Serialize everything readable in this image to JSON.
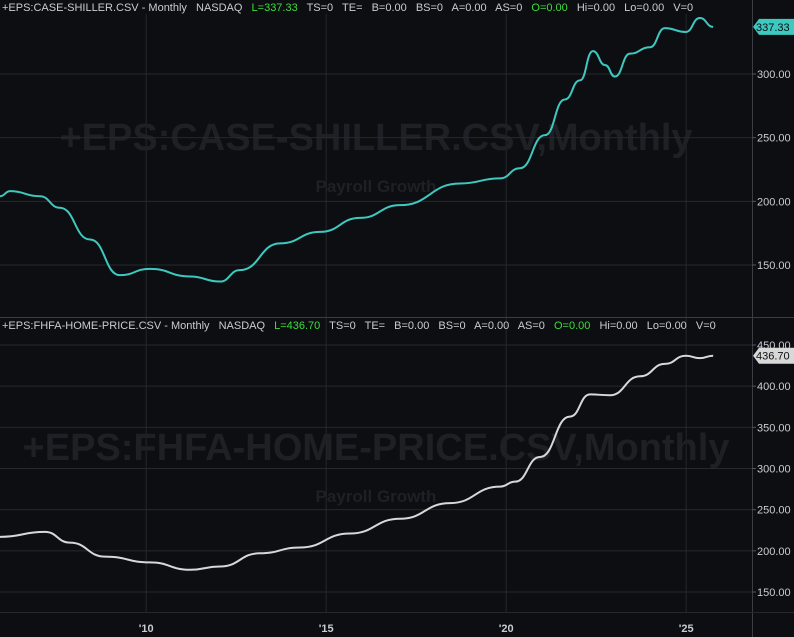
{
  "chart_data": [
    {
      "type": "line",
      "symbol": "+EPS:CASE-SHILLER.CSV",
      "title": "+EPS:CASE-SHILLER.CSV - Monthly",
      "exchange": "NASDAQ",
      "watermark": "+EPS:CASE-SHILLER.CSV,Monthly",
      "watermark_sub": "Payroll Growth",
      "last_label": "L=337.33",
      "stats": [
        "TS=0",
        "TE=",
        "B=0.00",
        "BS=0",
        "A=0.00",
        "AS=0"
      ],
      "open_label": "O=0.00",
      "stats2": [
        "Hi=0.00",
        "Lo=0.00",
        "V=0"
      ],
      "last_value": "337.33",
      "color": "#3ec9c0",
      "ylim": [
        110,
        360
      ],
      "yticks": [
        "300.00",
        "250.00",
        "200.00",
        "150.00"
      ],
      "ytick_values": [
        300,
        250,
        200,
        150
      ],
      "x": [
        2005.94,
        2006.22,
        2007.05,
        2007.6,
        2008.44,
        2009.27,
        2010.1,
        2011.22,
        2012.05,
        2012.6,
        2013.72,
        2014.83,
        2015.94,
        2017.05,
        2018.72,
        2019.83,
        2020.38,
        2021.08,
        2021.63,
        2022.05,
        2022.41,
        2022.75,
        2023.02,
        2023.44,
        2023.99,
        2024.41,
        2024.99,
        2025.38,
        2025.75
      ],
      "values": [
        204,
        208,
        204,
        195,
        170,
        142,
        147,
        141,
        137,
        146,
        167,
        176,
        187,
        197,
        214,
        218,
        226,
        252,
        280,
        295,
        318,
        307,
        298,
        316,
        321,
        336,
        333,
        344,
        337
      ]
    },
    {
      "type": "line",
      "symbol": "+EPS:FHFA-HOME-PRICE.CSV",
      "title": "+EPS:FHFA-HOME-PRICE.CSV - Monthly",
      "exchange": "NASDAQ",
      "watermark": "+EPS:FHFA-HOME-PRICE.CSV,Monthly",
      "watermark_sub": "Payroll Growth",
      "last_label": "L=436.70",
      "stats": [
        "TS=0",
        "TE=",
        "B=0.00",
        "BS=0",
        "A=0.00",
        "AS=0"
      ],
      "open_label": "O=0.00",
      "stats2": [
        "Hi=0.00",
        "Lo=0.00",
        "V=0"
      ],
      "last_value": "436.70",
      "color": "#d8d8d8",
      "ylim": [
        125,
        470
      ],
      "yticks": [
        "450.00",
        "400.00",
        "350.00",
        "300.00",
        "250.00",
        "200.00",
        "150.00"
      ],
      "ytick_values": [
        450,
        400,
        350,
        300,
        250,
        200,
        150
      ],
      "x": [
        2005.94,
        2007.19,
        2007.88,
        2008.86,
        2010.1,
        2011.22,
        2012.05,
        2013.16,
        2014.27,
        2015.66,
        2017.05,
        2018.44,
        2019.83,
        2020.25,
        2020.94,
        2021.77,
        2022.33,
        2022.88,
        2023.72,
        2024.41,
        2024.99,
        2025.38,
        2025.75
      ],
      "values": [
        217,
        223,
        210,
        193,
        186,
        177,
        181,
        197,
        204,
        221,
        239,
        258,
        278,
        284,
        314,
        363,
        390,
        389,
        412,
        427,
        437,
        434,
        437
      ]
    }
  ],
  "x_axis": {
    "labels": [
      "'10",
      "'15",
      "'20",
      "'25"
    ],
    "years": [
      2010,
      2015,
      2020,
      2025
    ]
  }
}
